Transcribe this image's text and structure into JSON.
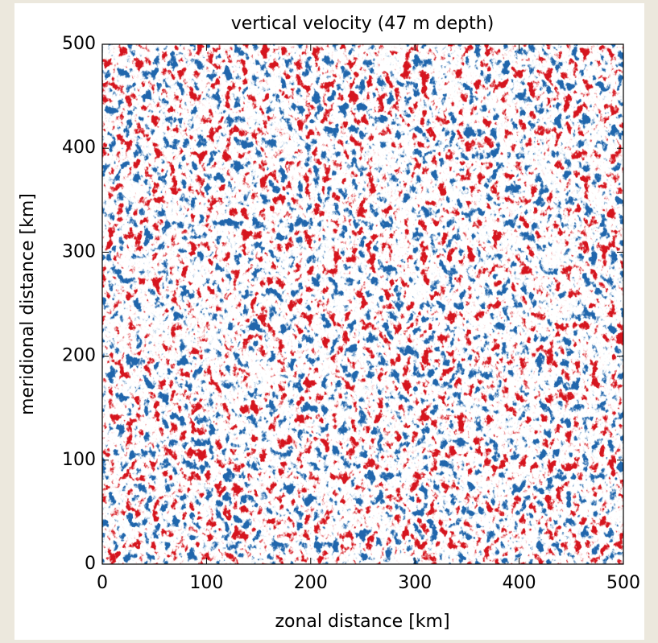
{
  "chart_data": {
    "type": "heatmap",
    "title": "vertical velocity (47 m depth)",
    "xlabel": "zonal distance [km]",
    "ylabel": "meridional distance [km]",
    "xlim": [
      0,
      500
    ],
    "ylim": [
      0,
      500
    ],
    "xticks": [
      0,
      100,
      200,
      300,
      400,
      500
    ],
    "yticks": [
      0,
      100,
      200,
      300,
      400,
      500
    ],
    "colormap": [
      "#2166ac",
      "#ffffff",
      "#d6161e"
    ]
  }
}
